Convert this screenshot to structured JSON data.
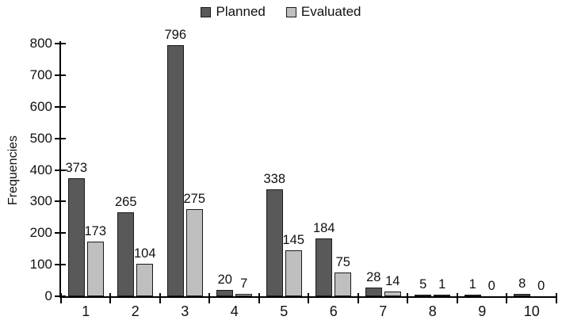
{
  "chart_data": {
    "type": "bar",
    "title": "",
    "xlabel": "",
    "ylabel": "Frequencies",
    "ylim": [
      0,
      800
    ],
    "yticks": [
      0,
      100,
      200,
      300,
      400,
      500,
      600,
      700,
      800
    ],
    "categories": [
      "1",
      "2",
      "3",
      "4",
      "5",
      "6",
      "7",
      "8",
      "9",
      "10"
    ],
    "series": [
      {
        "name": "Planned",
        "color": "#595959",
        "values": [
          373,
          265,
          796,
          20,
          338,
          184,
          28,
          5,
          1,
          8
        ]
      },
      {
        "name": "Evaluated",
        "color": "#bfbfbf",
        "values": [
          173,
          104,
          275,
          7,
          145,
          75,
          14,
          1,
          0,
          0
        ]
      }
    ],
    "show_value_labels": true,
    "grid": false,
    "legend_position": "top",
    "colors": {
      "axis": "#000000",
      "text": "#111111",
      "bar_border": "#1a1a1a",
      "background": "#ffffff"
    }
  }
}
